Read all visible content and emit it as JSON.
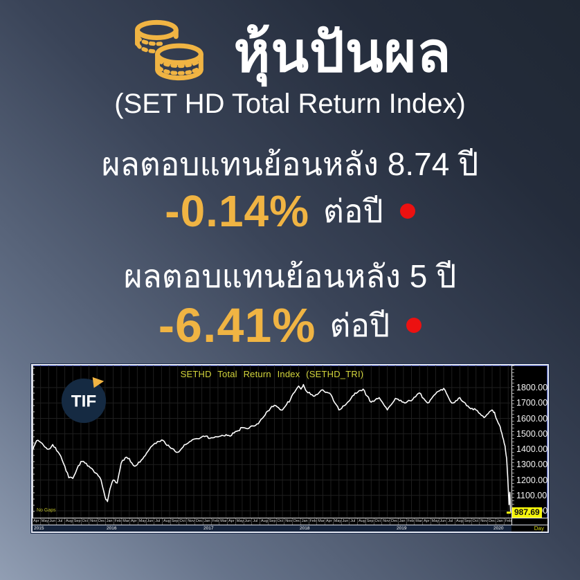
{
  "header": {
    "title": "หุ้นปันผล",
    "subtitle": "(SET HD Total Return Index)"
  },
  "stats": [
    {
      "label": "ผลตอบแทนย้อนหลัง 8.74 ปี",
      "value": "-0.14%",
      "unit": "ต่อปี"
    },
    {
      "label": "ผลตอบแทนย้อนหลัง 5 ปี",
      "value": "-6.41%",
      "unit": "ต่อปี"
    }
  ],
  "colors": {
    "accent_gold": "#F0B443",
    "dot_red": "#EC1111",
    "chart_title_yellow": "#D4D63C",
    "last_price_bg": "#F5F50A",
    "chart_line": "#FFFFFF",
    "background_top_right": "#1F2733",
    "background_bottom_left": "#919EB3"
  },
  "chart_data": {
    "type": "line",
    "title": "SETHD Total Return Index (SETHD_TRI)",
    "watermark": "TIF",
    "footer_note": "No Gaps",
    "x_axis_unit": "Day",
    "last_price": "987.69",
    "ylim": [
      950,
      1878
    ],
    "grid": true,
    "y_ticks": [
      "1800.00",
      "1700.00",
      "1600.00",
      "1500.00",
      "1400.00",
      "1300.00",
      "1200.00",
      "1100.00",
      "1000.00"
    ],
    "x_months": [
      "Apr",
      "May",
      "Jun",
      "Jul",
      "Aug",
      "Sep",
      "Oct",
      "Nov",
      "Dec",
      "Jan",
      "Feb",
      "Mar",
      "Apr",
      "May",
      "Jun",
      "Jul",
      "Aug",
      "Sep",
      "Oct",
      "Nov",
      "Dec",
      "Jan",
      "Feb",
      "Mar",
      "Apr",
      "May",
      "Jun",
      "Jul",
      "Aug",
      "Sep",
      "Oct",
      "Nov",
      "Dec",
      "Jan",
      "Feb",
      "Mar",
      "Apr",
      "May",
      "Jun",
      "Jul",
      "Aug",
      "Sep",
      "Oct",
      "Nov",
      "Dec",
      "Jan",
      "Feb",
      "Mar",
      "Apr",
      "May",
      "Jun",
      "Jul",
      "Aug",
      "Sep",
      "Oct",
      "Nov",
      "Dec",
      "Jan",
      "Feb"
    ],
    "x_years": [
      {
        "label": "2015",
        "t": 0
      },
      {
        "label": "2016",
        "t": 9
      },
      {
        "label": "2017",
        "t": 21
      },
      {
        "label": "2018",
        "t": 33
      },
      {
        "label": "2019",
        "t": 45
      },
      {
        "label": "2020",
        "t": 57
      }
    ],
    "series": [
      [
        0,
        1395
      ],
      [
        0.5,
        1455
      ],
      [
        1,
        1445
      ],
      [
        1.5,
        1415
      ],
      [
        2,
        1400
      ],
      [
        2.5,
        1430
      ],
      [
        3,
        1390
      ],
      [
        3.5,
        1355
      ],
      [
        4,
        1290
      ],
      [
        4.5,
        1215
      ],
      [
        5,
        1210
      ],
      [
        5.5,
        1270
      ],
      [
        6,
        1320
      ],
      [
        6.5,
        1310
      ],
      [
        7,
        1290
      ],
      [
        7.5,
        1265
      ],
      [
        8,
        1240
      ],
      [
        8.5,
        1200
      ],
      [
        9,
        1090
      ],
      [
        9.3,
        1060
      ],
      [
        9.6,
        1140
      ],
      [
        10,
        1200
      ],
      [
        10.5,
        1180
      ],
      [
        11,
        1310
      ],
      [
        11.5,
        1345
      ],
      [
        12,
        1340
      ],
      [
        12.5,
        1295
      ],
      [
        13,
        1300
      ],
      [
        13.5,
        1330
      ],
      [
        14,
        1360
      ],
      [
        14.5,
        1400
      ],
      [
        15,
        1430
      ],
      [
        15.5,
        1450
      ],
      [
        16,
        1460
      ],
      [
        16.5,
        1435
      ],
      [
        17,
        1415
      ],
      [
        17.5,
        1400
      ],
      [
        18,
        1380
      ],
      [
        18.5,
        1405
      ],
      [
        19,
        1430
      ],
      [
        19.5,
        1450
      ],
      [
        20,
        1465
      ],
      [
        21,
        1480
      ],
      [
        21.5,
        1485
      ],
      [
        22,
        1470
      ],
      [
        22.5,
        1475
      ],
      [
        23,
        1480
      ],
      [
        23.5,
        1490
      ],
      [
        24,
        1495
      ],
      [
        24.5,
        1485
      ],
      [
        25,
        1505
      ],
      [
        25.5,
        1520
      ],
      [
        26,
        1540
      ],
      [
        26.5,
        1535
      ],
      [
        27,
        1545
      ],
      [
        27.5,
        1550
      ],
      [
        28,
        1565
      ],
      [
        28.5,
        1600
      ],
      [
        29,
        1640
      ],
      [
        29.5,
        1665
      ],
      [
        30,
        1685
      ],
      [
        30.5,
        1670
      ],
      [
        31,
        1655
      ],
      [
        31.5,
        1690
      ],
      [
        32,
        1725
      ],
      [
        32.5,
        1770
      ],
      [
        33,
        1810
      ],
      [
        33.3,
        1790
      ],
      [
        33.6,
        1820
      ],
      [
        34,
        1775
      ],
      [
        34.5,
        1755
      ],
      [
        35,
        1745
      ],
      [
        35.5,
        1765
      ],
      [
        36,
        1785
      ],
      [
        36.5,
        1770
      ],
      [
        37,
        1755
      ],
      [
        37.5,
        1700
      ],
      [
        38,
        1655
      ],
      [
        38.5,
        1680
      ],
      [
        39,
        1700
      ],
      [
        39.5,
        1730
      ],
      [
        40,
        1765
      ],
      [
        40.5,
        1780
      ],
      [
        41,
        1790
      ],
      [
        41.5,
        1745
      ],
      [
        42,
        1705
      ],
      [
        42.5,
        1720
      ],
      [
        43,
        1735
      ],
      [
        43.5,
        1695
      ],
      [
        44,
        1655
      ],
      [
        44.5,
        1690
      ],
      [
        45,
        1730
      ],
      [
        45.5,
        1715
      ],
      [
        46,
        1705
      ],
      [
        46.5,
        1710
      ],
      [
        47,
        1715
      ],
      [
        47.5,
        1740
      ],
      [
        48,
        1765
      ],
      [
        48.5,
        1730
      ],
      [
        49,
        1700
      ],
      [
        49.5,
        1730
      ],
      [
        50,
        1760
      ],
      [
        50.5,
        1780
      ],
      [
        51,
        1795
      ],
      [
        51.5,
        1745
      ],
      [
        52,
        1700
      ],
      [
        52.5,
        1715
      ],
      [
        53,
        1735
      ],
      [
        53.5,
        1705
      ],
      [
        54,
        1680
      ],
      [
        54.5,
        1665
      ],
      [
        55,
        1655
      ],
      [
        55.5,
        1630
      ],
      [
        56,
        1605
      ],
      [
        56.5,
        1630
      ],
      [
        57,
        1655
      ],
      [
        57.3,
        1640
      ],
      [
        57.6,
        1590
      ],
      [
        58,
        1545
      ],
      [
        58.3,
        1480
      ],
      [
        58.6,
        1420
      ],
      [
        58.8,
        1340
      ],
      [
        59.0,
        1150
      ],
      [
        59.1,
        1040
      ],
      [
        59.2,
        1120
      ],
      [
        59.3,
        987.69
      ]
    ]
  }
}
